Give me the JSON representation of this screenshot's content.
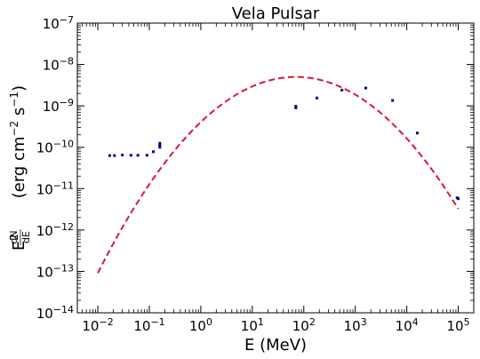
{
  "chart_data": {
    "type": "scatter",
    "title": "Vela Pulsar",
    "xlabel": "E (MeV)",
    "ylabel": {
      "main": "E",
      "power": "2",
      "frac_num": "dN",
      "frac_den": "dE",
      "unit_open": "(erg cm",
      "unit_pow1": "−2",
      "unit_mid": " s",
      "unit_pow2": "−1",
      "unit_close": ")"
    },
    "x_scale": "log",
    "y_scale": "log",
    "xlim": [
      0.004,
      200000
    ],
    "ylim": [
      1e-14,
      1e-07
    ],
    "grid": false,
    "legend": "none",
    "x_ticks": [
      {
        "base": "10",
        "exp": "−2",
        "value": 0.01
      },
      {
        "base": "10",
        "exp": "−1",
        "value": 0.1
      },
      {
        "base": "10",
        "exp": "0",
        "value": 1
      },
      {
        "base": "10",
        "exp": "1",
        "value": 10
      },
      {
        "base": "10",
        "exp": "2",
        "value": 100
      },
      {
        "base": "10",
        "exp": "3",
        "value": 1000
      },
      {
        "base": "10",
        "exp": "4",
        "value": 10000
      },
      {
        "base": "10",
        "exp": "5",
        "value": 100000
      }
    ],
    "y_ticks": [
      {
        "base": "10",
        "exp": "−14",
        "value": 1e-14
      },
      {
        "base": "10",
        "exp": "−13",
        "value": 1e-13
      },
      {
        "base": "10",
        "exp": "−12",
        "value": 1e-12
      },
      {
        "base": "10",
        "exp": "−11",
        "value": 1e-11
      },
      {
        "base": "10",
        "exp": "−10",
        "value": 1e-10
      },
      {
        "base": "10",
        "exp": "−9",
        "value": 1e-09
      },
      {
        "base": "10",
        "exp": "−8",
        "value": 1e-08
      },
      {
        "base": "10",
        "exp": "−7",
        "value": 1e-07
      }
    ],
    "series": [
      {
        "style": "points",
        "color": "#00008b",
        "points": [
          {
            "x": 0.017,
            "y": 6.3e-11
          },
          {
            "x": 0.021,
            "y": 6.3e-11
          },
          {
            "x": 0.03,
            "y": 6.5e-11
          },
          {
            "x": 0.044,
            "y": 6.4e-11
          },
          {
            "x": 0.06,
            "y": 6.4e-11
          },
          {
            "x": 0.09,
            "y": 6.4e-11
          },
          {
            "x": 0.12,
            "y": 7.8e-11
          },
          {
            "x": 0.16,
            "y": 1e-10
          },
          {
            "x": 0.16,
            "y": 1.12e-10
          },
          {
            "x": 0.16,
            "y": 1.25e-10
          },
          {
            "x": 70,
            "y": 9e-10
          },
          {
            "x": 70,
            "y": 9.8e-10
          },
          {
            "x": 180,
            "y": 1.55e-09
          },
          {
            "x": 550,
            "y": 2.4e-09
          },
          {
            "x": 1600,
            "y": 2.7e-09
          },
          {
            "x": 5300,
            "y": 1.35e-09
          },
          {
            "x": 16000,
            "y": 2.2e-10
          },
          {
            "x": 95000,
            "y": 6e-12
          },
          {
            "x": 100000,
            "y": 5.7e-12
          }
        ]
      },
      {
        "style": "dashed-curve",
        "color": "#dc143c",
        "model": "log-parabola",
        "peak_x": 70,
        "peak_y": 5e-09,
        "curvature": 0.3205,
        "x_range": [
          0.01,
          100000
        ]
      }
    ]
  }
}
